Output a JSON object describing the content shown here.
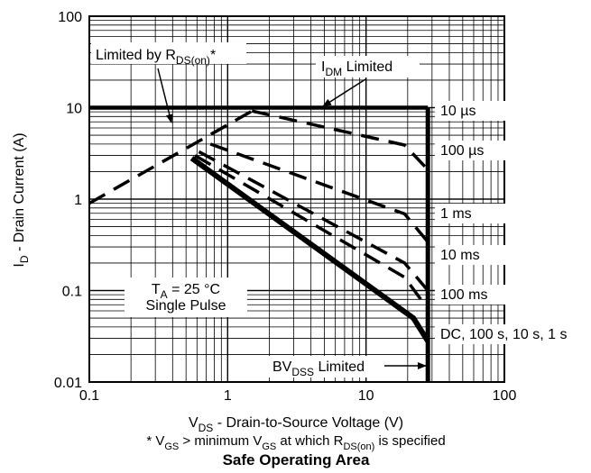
{
  "chart_data": {
    "type": "line",
    "title": "Safe Operating Area",
    "xlabel": {
      "main": "V",
      "sub": "DS",
      "rest": " - Drain-to-Source Voltage (V)"
    },
    "ylabel": {
      "main": "I",
      "sub": "D",
      "rest": " - Drain Current (A)"
    },
    "footnote": {
      "star": "* ",
      "v1": "V",
      "s1": "GS",
      "t1": "  >  minimum V",
      "s2": "GS",
      "t2": " at which R",
      "s3": "DS(on)",
      "t3": " is specified"
    },
    "x_scale": "log",
    "y_scale": "log",
    "xlim": [
      0.1,
      100
    ],
    "ylim": [
      0.01,
      100
    ],
    "grid": true,
    "x_ticks": [
      {
        "value": 0.1,
        "label": "0.1"
      },
      {
        "value": 1,
        "label": "1"
      },
      {
        "value": 10,
        "label": "10"
      },
      {
        "value": 100,
        "label": "100"
      }
    ],
    "y_ticks": [
      {
        "value": 0.01,
        "label": "0.01"
      },
      {
        "value": 0.1,
        "label": "0.1"
      },
      {
        "value": 1,
        "label": "1"
      },
      {
        "value": 10,
        "label": "10"
      },
      {
        "value": 100,
        "label": "100"
      }
    ],
    "series": [
      {
        "name": "10 µs",
        "style": "solid",
        "points": [
          [
            0.1,
            10
          ],
          [
            28,
            10
          ]
        ]
      },
      {
        "name": "100 µs",
        "style": "dashed",
        "points": [
          [
            1.5,
            9.2
          ],
          [
            19,
            3.9
          ],
          [
            28,
            2.1
          ]
        ]
      },
      {
        "name": "1 ms",
        "style": "dashed",
        "points": [
          [
            0.75,
            4.0
          ],
          [
            19,
            0.69
          ],
          [
            28,
            0.34
          ]
        ]
      },
      {
        "name": "10 ms",
        "style": "dashed",
        "points": [
          [
            0.62,
            3.3
          ],
          [
            19,
            0.2
          ],
          [
            28,
            0.1
          ]
        ]
      },
      {
        "name": "100 ms",
        "style": "dashed",
        "points": [
          [
            0.58,
            3.0
          ],
          [
            19,
            0.14
          ],
          [
            28,
            0.063
          ]
        ]
      },
      {
        "name": "DC, 100 s, 10 s,  1 s",
        "style": "solid",
        "points": [
          [
            0.55,
            2.8
          ],
          [
            22,
            0.05
          ],
          [
            28,
            0.028
          ]
        ]
      },
      {
        "name": "Limited by R_DS(on)*",
        "style": "dashed",
        "points": [
          [
            0.1,
            0.9
          ],
          [
            1.5,
            9.2
          ]
        ]
      },
      {
        "name": "BV_DSS Limited",
        "style": "solid",
        "points": [
          [
            28,
            0.01
          ],
          [
            28,
            10
          ]
        ]
      }
    ],
    "annotations": {
      "rds": {
        "pre": "Limited by R",
        "sub": "DS(on)",
        "post": "*"
      },
      "idm": {
        "main": "I",
        "sub": "DM",
        "post": " Limited"
      },
      "bv": {
        "main": "BV",
        "sub": "DSS",
        "post": " Limited"
      },
      "ta": {
        "main": "T",
        "sub": "A",
        "post": " = 25 °C",
        "line2": "Single Pulse"
      }
    },
    "curve_labels": [
      "10 µs",
      "100 µs",
      "1 ms",
      "10 ms",
      "100 ms",
      "DC, 100 s, 10 s,  1 s"
    ]
  }
}
